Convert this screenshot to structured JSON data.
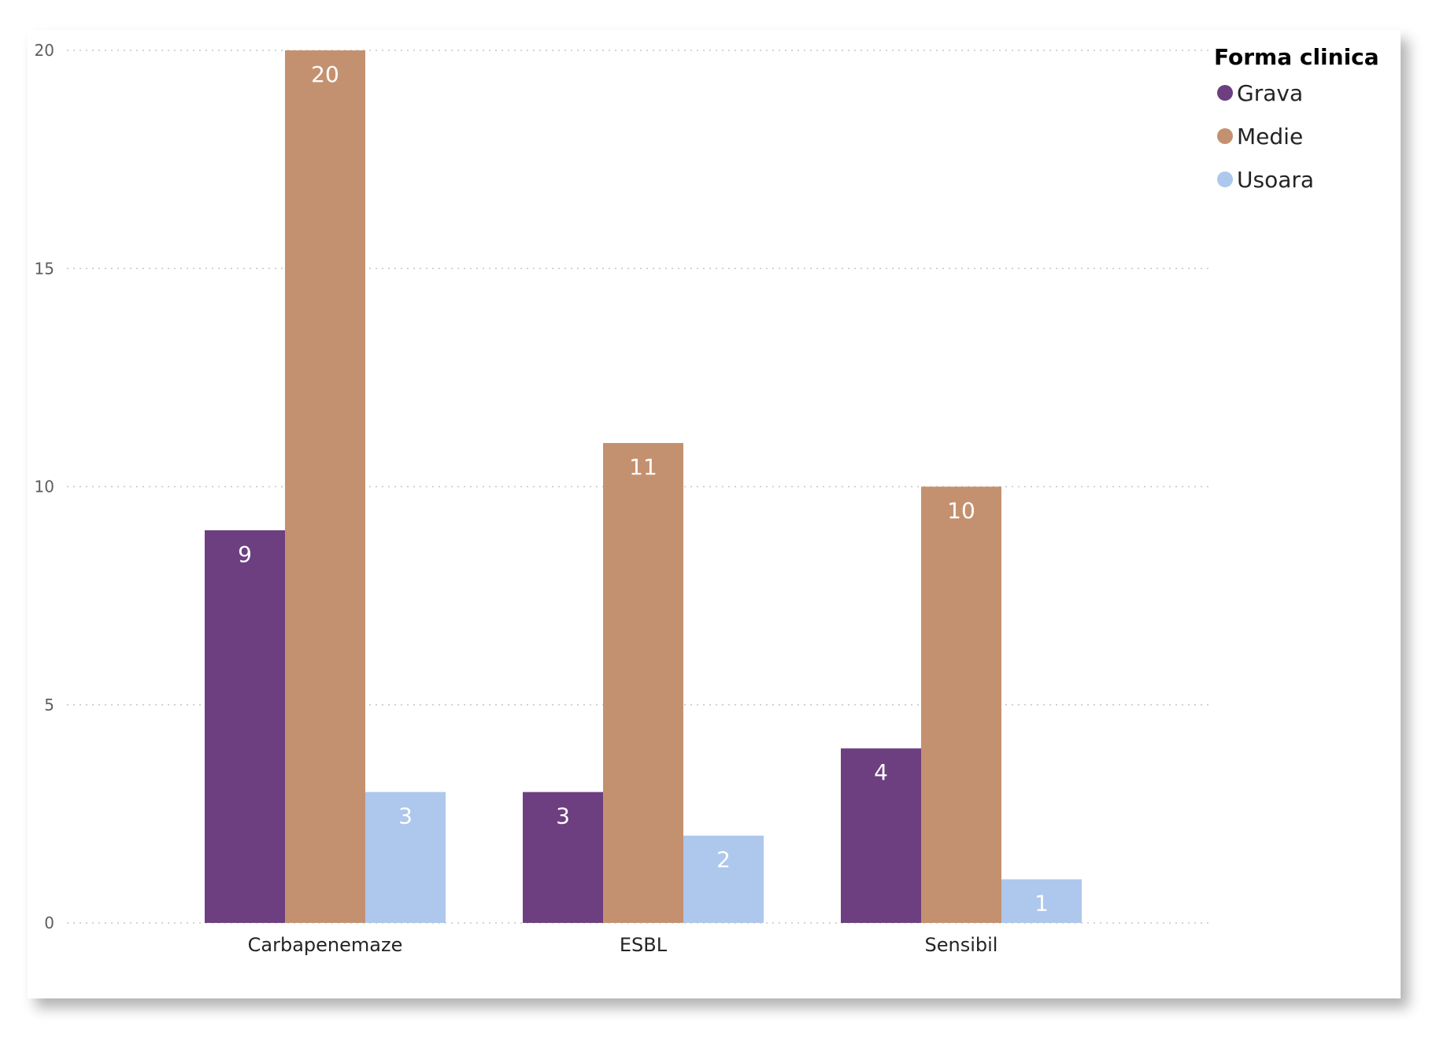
{
  "chart_data": {
    "type": "bar",
    "categories": [
      "Carbapenemaze",
      "ESBL",
      "Sensibil"
    ],
    "series": [
      {
        "name": "Grava",
        "values": [
          9,
          3,
          4
        ],
        "color": "#6d3f80"
      },
      {
        "name": "Medie",
        "values": [
          20,
          11,
          10
        ],
        "color": "#c49170"
      },
      {
        "name": "Usoara",
        "values": [
          3,
          2,
          1
        ],
        "color": "#aec7ed"
      }
    ],
    "title": "",
    "xlabel": "",
    "ylabel": "",
    "ylim": [
      0,
      20
    ],
    "yticks": [
      0,
      5,
      10,
      15,
      20
    ],
    "grid": true,
    "legend": {
      "title": "Forma clinica",
      "placement": "top-right"
    },
    "data_labels": true
  }
}
